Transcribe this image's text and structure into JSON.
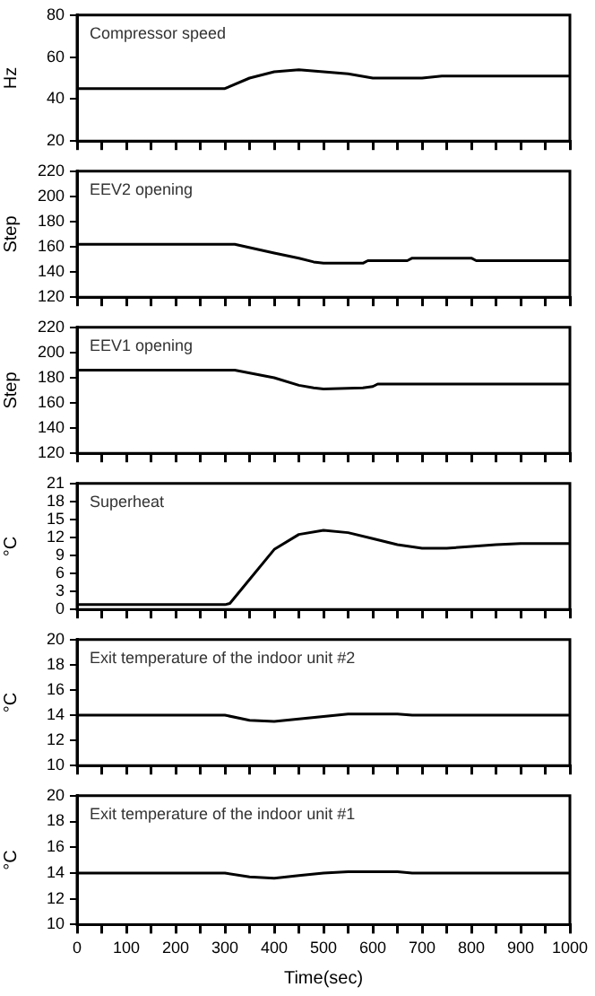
{
  "chart_data": [
    {
      "type": "line",
      "ylabel": "Hz",
      "annotations": [
        "Compressor speed"
      ],
      "color": "#000000",
      "tick_labels": "y",
      "x": [
        0,
        300,
        350,
        400,
        450,
        500,
        550,
        600,
        700,
        740,
        1000
      ],
      "values": [
        45,
        45,
        50,
        53,
        54,
        53,
        52,
        50,
        50,
        51,
        51
      ],
      "xlim": [
        0,
        1000
      ],
      "xticks": [
        0,
        {
          "value": 50,
          "label": null
        },
        100,
        {
          "value": 150,
          "label": null
        },
        200,
        {
          "value": 250,
          "label": null
        },
        300,
        {
          "value": 350,
          "label": null
        },
        400,
        {
          "value": 450,
          "label": null
        },
        500,
        {
          "value": 550,
          "label": null
        },
        600,
        {
          "value": 650,
          "label": null
        },
        700,
        {
          "value": 750,
          "label": null
        },
        800,
        {
          "value": 850,
          "label": null
        },
        900,
        {
          "value": 950,
          "label": null
        },
        1000
      ],
      "ylim": [
        20,
        80
      ],
      "yticks": [
        20,
        40,
        60,
        80
      ]
    },
    {
      "type": "line",
      "ylabel": "Step",
      "annotations": [
        "EEV2 opening"
      ],
      "color": "#000000",
      "tick_labels": "y",
      "x": [
        0,
        320,
        400,
        450,
        480,
        500,
        580,
        590,
        670,
        680,
        800,
        810,
        1000
      ],
      "values": [
        162,
        162,
        155,
        151,
        148,
        147,
        147,
        149,
        149,
        151,
        151,
        149,
        149
      ],
      "xlim": [
        0,
        1000
      ],
      "xticks": [
        0,
        {
          "value": 50,
          "label": null
        },
        100,
        {
          "value": 150,
          "label": null
        },
        200,
        {
          "value": 250,
          "label": null
        },
        300,
        {
          "value": 350,
          "label": null
        },
        400,
        {
          "value": 450,
          "label": null
        },
        500,
        {
          "value": 550,
          "label": null
        },
        600,
        {
          "value": 650,
          "label": null
        },
        700,
        {
          "value": 750,
          "label": null
        },
        800,
        {
          "value": 850,
          "label": null
        },
        900,
        {
          "value": 950,
          "label": null
        },
        1000
      ],
      "ylim": [
        120,
        220
      ],
      "yticks": [
        120,
        140,
        160,
        180,
        200,
        220
      ]
    },
    {
      "type": "line",
      "ylabel": "Step",
      "annotations": [
        "EEV1 opening"
      ],
      "color": "#000000",
      "tick_labels": "y",
      "x": [
        0,
        320,
        400,
        450,
        480,
        500,
        580,
        600,
        610,
        1000
      ],
      "values": [
        186,
        186,
        180,
        174,
        172,
        171,
        172,
        173,
        175,
        175
      ],
      "xlim": [
        0,
        1000
      ],
      "xticks": [
        0,
        {
          "value": 50,
          "label": null
        },
        100,
        {
          "value": 150,
          "label": null
        },
        200,
        {
          "value": 250,
          "label": null
        },
        300,
        {
          "value": 350,
          "label": null
        },
        400,
        {
          "value": 450,
          "label": null
        },
        500,
        {
          "value": 550,
          "label": null
        },
        600,
        {
          "value": 650,
          "label": null
        },
        700,
        {
          "value": 750,
          "label": null
        },
        800,
        {
          "value": 850,
          "label": null
        },
        900,
        {
          "value": 950,
          "label": null
        },
        1000
      ],
      "ylim": [
        120,
        220
      ],
      "yticks": [
        120,
        140,
        160,
        180,
        200,
        220
      ]
    },
    {
      "type": "line",
      "ylabel": "°C",
      "annotations": [
        "Superheat"
      ],
      "color": "#000000",
      "tick_labels": "y",
      "x": [
        0,
        300,
        310,
        350,
        400,
        450,
        500,
        550,
        600,
        650,
        700,
        750,
        800,
        850,
        900,
        1000
      ],
      "values": [
        0.8,
        0.8,
        1,
        5,
        10,
        12.5,
        13.2,
        12.8,
        11.8,
        10.8,
        10.2,
        10.2,
        10.5,
        10.8,
        11,
        11
      ],
      "xlim": [
        0,
        1000
      ],
      "xticks": [
        0,
        {
          "value": 50,
          "label": null
        },
        100,
        {
          "value": 150,
          "label": null
        },
        200,
        {
          "value": 250,
          "label": null
        },
        300,
        {
          "value": 350,
          "label": null
        },
        400,
        {
          "value": 450,
          "label": null
        },
        500,
        {
          "value": 550,
          "label": null
        },
        600,
        {
          "value": 650,
          "label": null
        },
        700,
        {
          "value": 750,
          "label": null
        },
        800,
        {
          "value": 850,
          "label": null
        },
        900,
        {
          "value": 950,
          "label": null
        },
        1000
      ],
      "ylim": [
        0,
        21
      ],
      "yticks": [
        0,
        3,
        6,
        9,
        12,
        15,
        18,
        21
      ]
    },
    {
      "type": "line",
      "ylabel": "°C",
      "annotations": [
        "Exit temperature of the indoor unit #2"
      ],
      "color": "#000000",
      "tick_labels": "y",
      "x": [
        0,
        300,
        350,
        400,
        450,
        500,
        550,
        650,
        680,
        1000
      ],
      "values": [
        14,
        14,
        13.6,
        13.5,
        13.7,
        13.9,
        14.1,
        14.1,
        14,
        14
      ],
      "xlim": [
        0,
        1000
      ],
      "xticks": [
        0,
        {
          "value": 50,
          "label": null
        },
        100,
        {
          "value": 150,
          "label": null
        },
        200,
        {
          "value": 250,
          "label": null
        },
        300,
        {
          "value": 350,
          "label": null
        },
        400,
        {
          "value": 450,
          "label": null
        },
        500,
        {
          "value": 550,
          "label": null
        },
        600,
        {
          "value": 650,
          "label": null
        },
        700,
        {
          "value": 750,
          "label": null
        },
        800,
        {
          "value": 850,
          "label": null
        },
        900,
        {
          "value": 950,
          "label": null
        },
        1000
      ],
      "ylim": [
        10,
        20
      ],
      "yticks": [
        10,
        12,
        14,
        16,
        18,
        20
      ]
    },
    {
      "type": "line",
      "ylabel": "°C",
      "xlabel": "Time(sec)",
      "annotations": [
        "Exit temperature of the indoor unit #1"
      ],
      "color": "#000000",
      "x": [
        0,
        300,
        350,
        400,
        450,
        500,
        550,
        650,
        680,
        1000
      ],
      "values": [
        14,
        14,
        13.7,
        13.6,
        13.8,
        14,
        14.1,
        14.1,
        14,
        14
      ],
      "xlim": [
        0,
        1000
      ],
      "xticks": [
        0,
        {
          "value": 50,
          "label": null
        },
        100,
        {
          "value": 150,
          "label": null
        },
        200,
        {
          "value": 250,
          "label": null
        },
        300,
        {
          "value": 350,
          "label": null
        },
        400,
        {
          "value": 450,
          "label": null
        },
        500,
        {
          "value": 550,
          "label": null
        },
        600,
        {
          "value": 650,
          "label": null
        },
        700,
        {
          "value": 750,
          "label": null
        },
        800,
        {
          "value": 850,
          "label": null
        },
        900,
        {
          "value": 950,
          "label": null
        },
        1000
      ],
      "ylim": [
        10,
        20
      ],
      "yticks": [
        10,
        12,
        14,
        16,
        18,
        20
      ]
    }
  ]
}
